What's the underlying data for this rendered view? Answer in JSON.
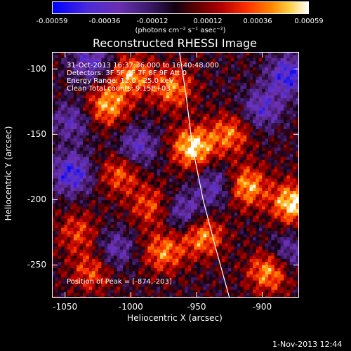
{
  "colorbar": {
    "ticks": [
      "-0.00059",
      "-0.00036",
      "-0.00012",
      "0.00012",
      "0.00036",
      "0.00059"
    ],
    "units": "(photons cm⁻² s⁻¹ asec⁻²)",
    "min": -0.00059,
    "max": 0.00059
  },
  "chart_data": {
    "type": "heatmap",
    "title": "Reconstructed RHESSI Image",
    "xlabel": "Heliocentric X (arcsec)",
    "ylabel": "Heliocentric Y (arcsec)",
    "xlim": [
      -1060,
      -872
    ],
    "ylim": [
      -275,
      -87
    ],
    "x_ticks": [
      "-1050",
      "-1000",
      "-950",
      "-900"
    ],
    "y_ticks": [
      "-100",
      "-150",
      "-200",
      "-250"
    ],
    "x_tick_values": [
      -1050,
      -1000,
      -950,
      -900
    ],
    "y_tick_values": [
      -100,
      -150,
      -200,
      -250
    ],
    "grid": false,
    "colormap": [
      "#0000ff",
      "#6a2fb0",
      "#120010",
      "#b00000",
      "#ff8a00",
      "#ffffff"
    ],
    "peak": [
      -874,
      -203
    ],
    "limb_curve": [
      [
        -963,
        -87
      ],
      [
        -958,
        -120
      ],
      [
        -953,
        -160
      ],
      [
        -945,
        -200
      ],
      [
        -936,
        -235
      ],
      [
        -925,
        -275
      ]
    ],
    "hot_spots": [
      {
        "x": -953,
        "y": -160,
        "level": 1.0
      },
      {
        "x": -877,
        "y": -203,
        "level": 1.0
      },
      {
        "x": -1018,
        "y": -128,
        "level": 0.8
      },
      {
        "x": -1000,
        "y": -105,
        "level": 0.75
      },
      {
        "x": -912,
        "y": -190,
        "level": 0.85
      },
      {
        "x": -968,
        "y": -115,
        "level": 0.7
      },
      {
        "x": -1008,
        "y": -180,
        "level": 0.6
      },
      {
        "x": -975,
        "y": -240,
        "level": 0.7
      },
      {
        "x": -945,
        "y": -228,
        "level": 0.75
      },
      {
        "x": -895,
        "y": -255,
        "level": 0.8
      },
      {
        "x": -925,
        "y": -150,
        "level": 0.65
      },
      {
        "x": -985,
        "y": -205,
        "level": 0.55
      },
      {
        "x": -1040,
        "y": -225,
        "level": 0.5
      },
      {
        "x": -1030,
        "y": -255,
        "level": 0.55
      }
    ],
    "cold_spots": [
      {
        "x": -1045,
        "y": -180,
        "level": -0.8
      },
      {
        "x": -880,
        "y": -105,
        "level": -0.8
      },
      {
        "x": -1030,
        "y": -95,
        "level": -0.6
      },
      {
        "x": -995,
        "y": -160,
        "level": -0.6
      },
      {
        "x": -935,
        "y": -190,
        "level": -0.55
      },
      {
        "x": -1045,
        "y": -140,
        "level": -0.5
      },
      {
        "x": -960,
        "y": -210,
        "level": -0.55
      },
      {
        "x": -900,
        "y": -130,
        "level": -0.6
      },
      {
        "x": -1012,
        "y": -238,
        "level": -0.5
      },
      {
        "x": -880,
        "y": -240,
        "level": -0.5
      }
    ]
  },
  "annotations": {
    "time": "31-Oct-2013 16:37:36.000 to 16:40:48.000",
    "detectors": "Detectors: 3F 5F 6F 7F 8F 9F  Att 0",
    "energy": "Energy Range: 12.0 - 25.0 keV",
    "method": "Clean    Total counts: 9.15E+03",
    "peak": "Position of Peak = [-874,-203]"
  },
  "footer": "1-Nov-2013 12:44"
}
